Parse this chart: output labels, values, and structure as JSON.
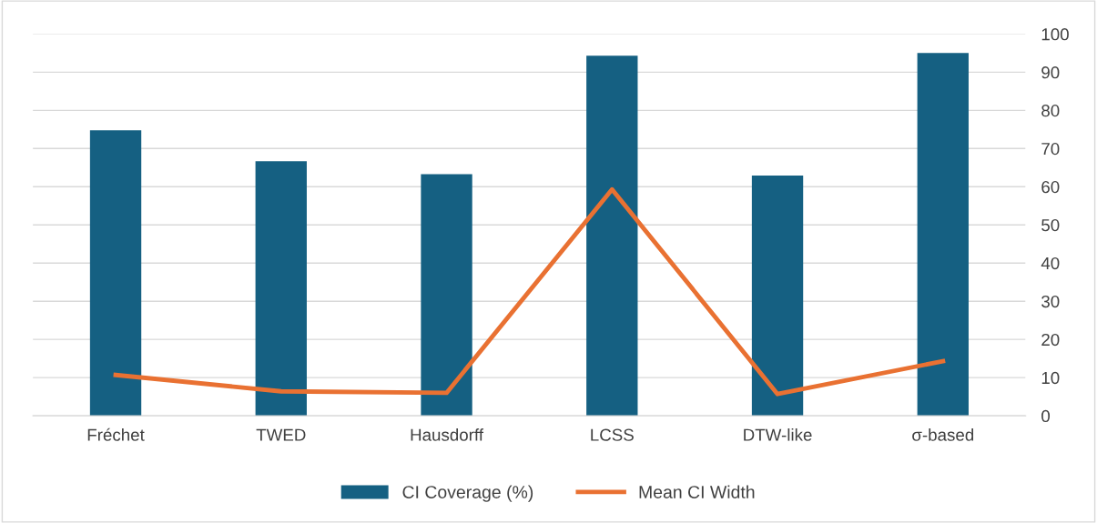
{
  "chart_data": {
    "type": "bar",
    "categories": [
      "Fréchet",
      "TWED",
      "Hausdorff",
      "LCSS",
      "DTW-like",
      "σ-based"
    ],
    "series": [
      {
        "name": "CI Coverage (%)",
        "color": "#156082",
        "values": [
          74.8,
          66.7,
          63.3,
          94.3,
          62.9,
          95.0
        ]
      },
      {
        "name": "Mean CI Width",
        "type": "line",
        "color": "#e97132",
        "values": [
          10.7,
          6.4,
          6.0,
          59.3,
          5.7,
          14.3
        ]
      }
    ],
    "ylim": [
      0,
      100
    ],
    "yticks": [
      0,
      10,
      20,
      30,
      40,
      50,
      60,
      70,
      80,
      90,
      100
    ],
    "grid": "y",
    "legend": "bottom",
    "marker": "none",
    "line_style": "solid"
  }
}
